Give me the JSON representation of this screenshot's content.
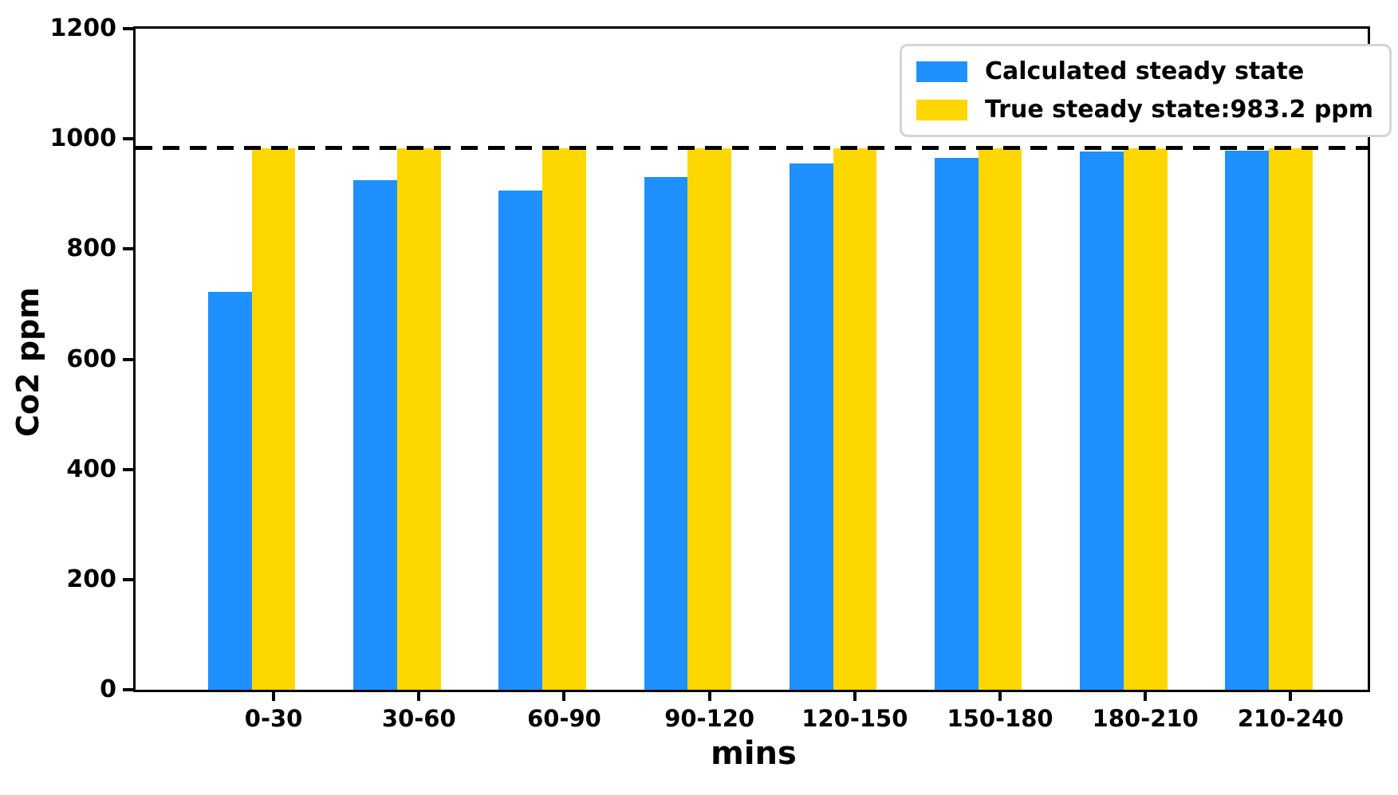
{
  "chart_data": {
    "type": "bar",
    "title": "",
    "xlabel": "mins",
    "ylabel": "Co2 ppm",
    "categories": [
      "0-30",
      "30-60",
      "60-90",
      "90-120",
      "120-150",
      "150-180",
      "180-210",
      "210-240"
    ],
    "series": [
      {
        "name": "Calculated steady state",
        "color": "#1E90FF",
        "values": [
          723,
          925,
          906,
          931,
          955,
          965,
          977,
          979
        ]
      },
      {
        "name": "True steady state:983.2 ppm",
        "color": "#FFD700",
        "values": [
          983.2,
          983.2,
          983.2,
          983.2,
          983.2,
          983.2,
          983.2,
          983.2
        ]
      }
    ],
    "reference_line": {
      "value": 983.2,
      "color": "#000000",
      "style": "dashed",
      "label": "True steady state:983.2 ppm"
    },
    "ylim": [
      0,
      1200
    ],
    "yticks": [
      0,
      200,
      400,
      600,
      800,
      1000,
      1200
    ],
    "grid": false,
    "legend_position": "upper right",
    "colors": {
      "axis": "#000000",
      "legend_border": "#d5d5d5",
      "background": "#ffffff"
    }
  }
}
